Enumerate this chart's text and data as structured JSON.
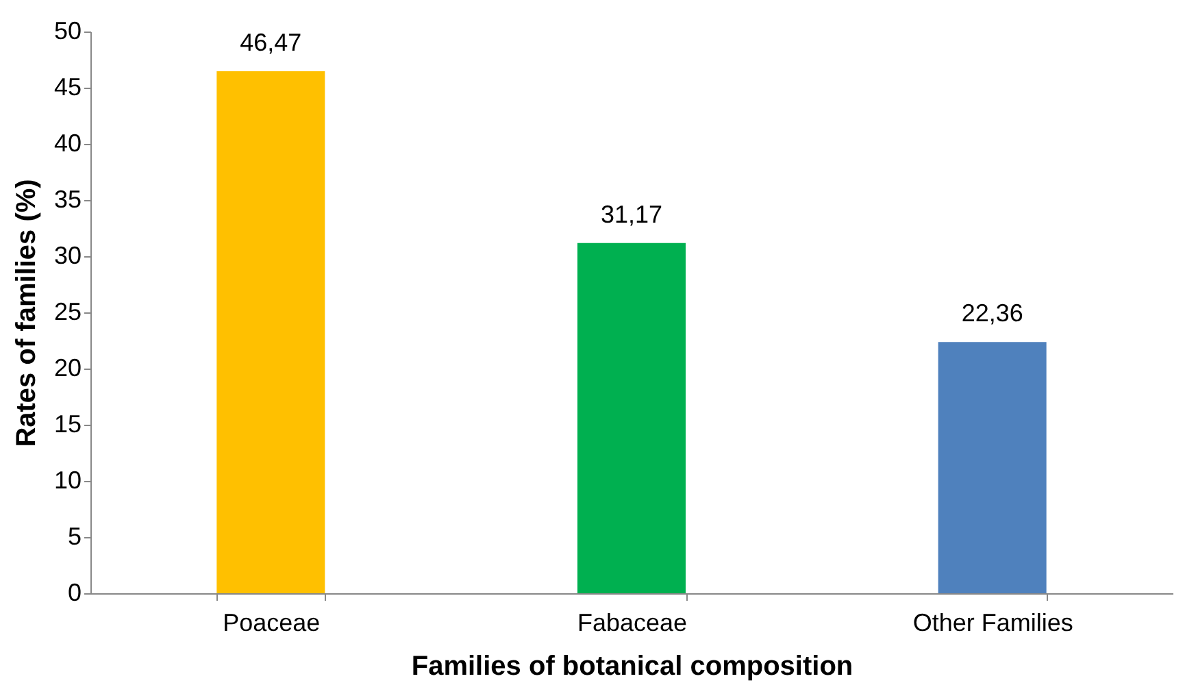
{
  "chart_data": {
    "type": "bar",
    "xlabel": "Families of botanical composition",
    "ylabel": "Rates of families (%)",
    "categories": [
      "Poaceae",
      "Fabaceae",
      "Other Families"
    ],
    "values": [
      46.47,
      31.17,
      22.36
    ],
    "colors": [
      "#ffc000",
      "#00b050",
      "#4f81bd"
    ],
    "value_labels": [
      "46,47",
      "31,17",
      "22,36"
    ],
    "ylim": [
      0,
      50
    ],
    "yticks": [
      0,
      5,
      10,
      15,
      20,
      25,
      30,
      35,
      40,
      45,
      50
    ],
    "grid": false
  }
}
